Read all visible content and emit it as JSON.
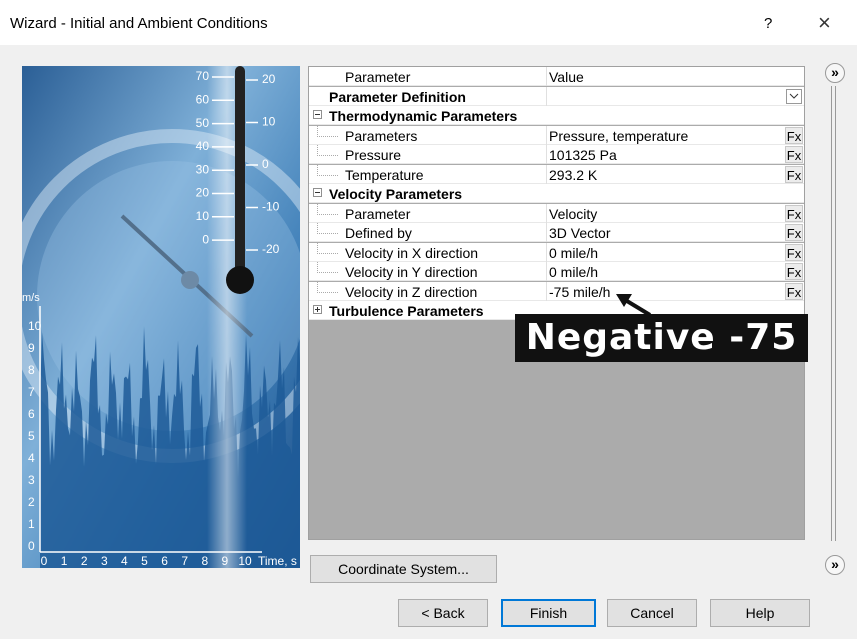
{
  "window": {
    "title": "Wizard - Initial and Ambient Conditions",
    "help": "?",
    "close": "×"
  },
  "image": {
    "thermo_left": [
      "70",
      "60",
      "50",
      "40",
      "30",
      "20",
      "10",
      "0"
    ],
    "thermo_right": [
      "20",
      "10",
      "0",
      "-10",
      "-20"
    ],
    "y_unit": "m/s",
    "y_labels": [
      "0",
      "1",
      "2",
      "3",
      "4",
      "5",
      "6",
      "7",
      "8",
      "9",
      "10"
    ],
    "x_labels": [
      "0",
      "1",
      "2",
      "3",
      "4",
      "5",
      "6",
      "7",
      "8",
      "9",
      "10"
    ],
    "x_unit": "Time, s"
  },
  "grid": {
    "header": [
      "Parameter",
      "Value"
    ],
    "rows": [
      {
        "kind": "bold",
        "label": "Parameter Definition",
        "value": "",
        "dropdown": true
      },
      {
        "kind": "group",
        "label": "Thermodynamic Parameters",
        "expanded": true
      },
      {
        "kind": "item",
        "label": "Parameters",
        "value": "Pressure, temperature",
        "button": "Fx"
      },
      {
        "kind": "item",
        "label": "Pressure",
        "value": "101325 Pa",
        "button": "Fx"
      },
      {
        "kind": "item",
        "label": "Temperature",
        "value": "293.2 K",
        "button": "Fx"
      },
      {
        "kind": "group",
        "label": "Velocity Parameters",
        "expanded": true
      },
      {
        "kind": "item",
        "label": "Parameter",
        "value": "Velocity",
        "button": "Fx"
      },
      {
        "kind": "item",
        "label": "Defined by",
        "value": "3D Vector",
        "button": "Fx"
      },
      {
        "kind": "item",
        "label": "Velocity in X direction",
        "value": "0 mile/h",
        "button": "Fx"
      },
      {
        "kind": "item",
        "label": "Velocity in Y direction",
        "value": "0 mile/h",
        "button": "Fx"
      },
      {
        "kind": "item",
        "label": "Velocity in Z direction",
        "value": "-75 mile/h",
        "button": "Fx"
      },
      {
        "kind": "group",
        "label": "Turbulence Parameters",
        "expanded": false
      }
    ]
  },
  "annotation": "Negative -75",
  "side_buttons": [
    "»",
    "»"
  ],
  "coord_button": "Coordinate System...",
  "buttons": [
    "< Back",
    "Finish",
    "Cancel",
    "Help"
  ]
}
